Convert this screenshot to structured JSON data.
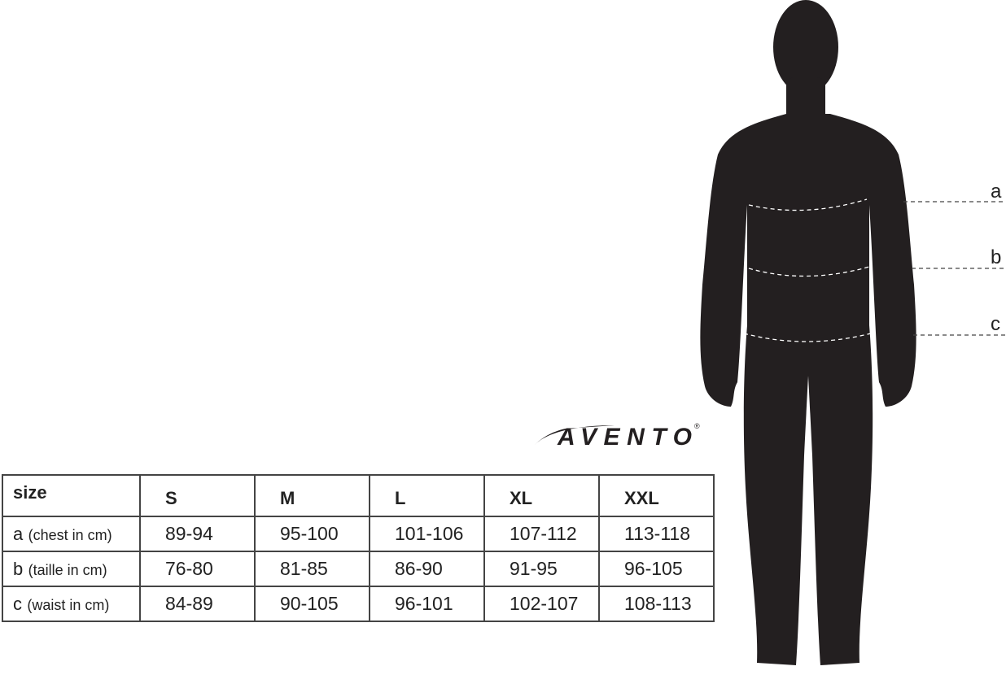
{
  "brand": {
    "logo_text": "AVENTO",
    "registered": "®"
  },
  "measure_labels": [
    "a",
    "b",
    "c"
  ],
  "table": {
    "header": [
      "size",
      "S",
      "M",
      "L",
      "XL",
      "XXL"
    ],
    "rows": [
      {
        "letter": "a",
        "desc": "(chest in cm)",
        "values": [
          "89-94",
          "95-100",
          "101-106",
          "107-112",
          "113-118"
        ]
      },
      {
        "letter": "b",
        "desc": "(taille in cm)",
        "values": [
          "76-80",
          "81-85",
          "86-90",
          "91-95",
          "96-105"
        ]
      },
      {
        "letter": "c",
        "desc": "(waist in cm)",
        "values": [
          "84-89",
          "90-105",
          "96-101",
          "102-107",
          "108-113"
        ]
      }
    ]
  },
  "colors": {
    "silhouette": "#231f20",
    "lines": "#444444"
  }
}
